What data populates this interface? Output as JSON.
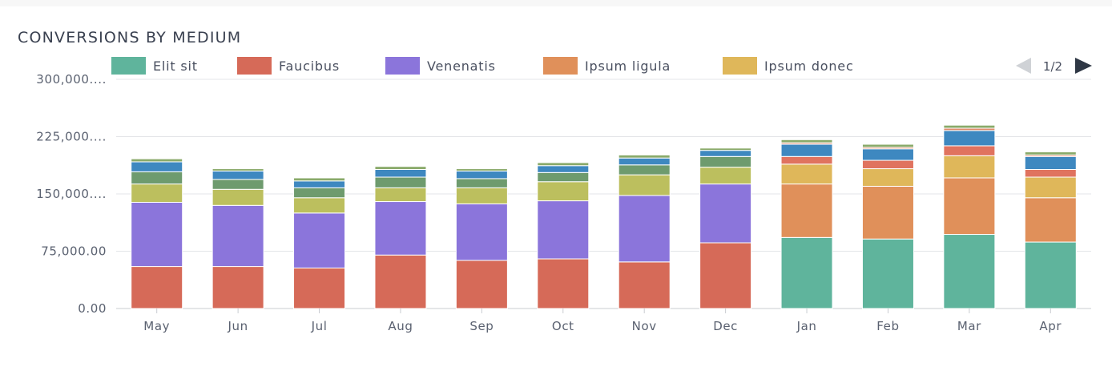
{
  "page": {
    "title": "CONVERSIONS BY MEDIUM"
  },
  "pager": {
    "label": "1/2",
    "prev_icon": "triangle-left-icon",
    "next_icon": "triangle-right-icon"
  },
  "chart_data": {
    "type": "bar",
    "stacked": true,
    "title": "CONVERSIONS BY MEDIUM",
    "xlabel": "",
    "ylabel": "",
    "ylim": [
      0,
      300000
    ],
    "yticks": [
      0,
      75000,
      150000,
      225000,
      300000
    ],
    "ytick_labels": [
      "0.00",
      "75,000.00",
      "150,000....",
      "225,000....",
      "300,000...."
    ],
    "grid": true,
    "legend_position": "top",
    "categories": [
      "May",
      "Jun",
      "Jul",
      "Aug",
      "Sep",
      "Oct",
      "Nov",
      "Dec",
      "Jan",
      "Feb",
      "Mar",
      "Apr"
    ],
    "series": [
      {
        "name": "Elit sit",
        "color": "#5fb49c",
        "values": [
          0,
          0,
          0,
          0,
          0,
          0,
          0,
          0,
          93000,
          91000,
          97000,
          87000
        ]
      },
      {
        "name": "Faucibus",
        "color": "#d66a58",
        "values": [
          55000,
          55000,
          53000,
          70000,
          63000,
          65000,
          61000,
          86000,
          0,
          0,
          0,
          0
        ]
      },
      {
        "name": "Venenatis",
        "color": "#8b75db",
        "values": [
          84000,
          80000,
          72000,
          70000,
          74000,
          76000,
          87000,
          77000,
          0,
          0,
          0,
          0
        ]
      },
      {
        "name": "Ipsum ligula",
        "color": "#e0905a",
        "values": [
          0,
          0,
          0,
          0,
          0,
          0,
          0,
          0,
          70000,
          69000,
          74000,
          58000
        ]
      },
      {
        "name": "Ipsum donec",
        "color": "#dfb75a",
        "values": [
          0,
          0,
          0,
          0,
          0,
          0,
          0,
          0,
          26000,
          23000,
          29000,
          27000
        ]
      },
      {
        "name": "",
        "color": "#bcbf5e",
        "values": [
          24000,
          21000,
          20000,
          18000,
          21000,
          25000,
          27000,
          22000,
          0,
          0,
          0,
          0
        ]
      },
      {
        "name": "",
        "color": "#e0735f",
        "values": [
          0,
          0,
          0,
          0,
          0,
          0,
          0,
          0,
          10000,
          11000,
          13000,
          10000
        ]
      },
      {
        "name": "",
        "color": "#6e9b6e",
        "values": [
          16000,
          13000,
          13000,
          14000,
          12000,
          12000,
          13000,
          14000,
          0,
          0,
          0,
          0
        ]
      },
      {
        "name": "",
        "color": "#3e88c0",
        "values": [
          13000,
          11000,
          9000,
          10000,
          10000,
          9000,
          9000,
          8000,
          16000,
          15000,
          20000,
          17000
        ]
      },
      {
        "name": "",
        "color": "#e08a6a",
        "values": [
          0,
          0,
          0,
          0,
          0,
          0,
          0,
          0,
          2000,
          2000,
          3000,
          2000
        ]
      },
      {
        "name": "",
        "color": "#8aaa6a",
        "values": [
          4000,
          3000,
          4000,
          4000,
          3000,
          4000,
          4000,
          3000,
          4000,
          4000,
          4000,
          4000
        ]
      }
    ]
  }
}
